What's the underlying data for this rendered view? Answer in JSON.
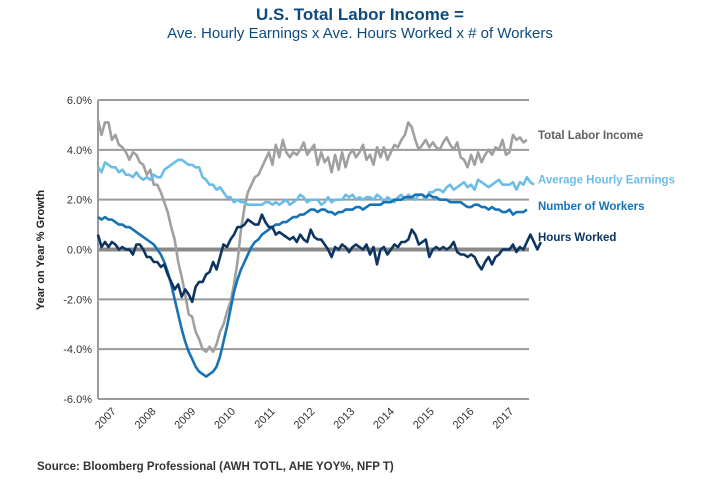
{
  "title": "U.S. Total Labor Income =",
  "subtitle": "Ave. Hourly Earnings x Ave. Hours Worked x # of Workers",
  "source": "Source: Bloomberg Professional (AWH TOTL, AHE YOY%, NFP T)",
  "chart_data": {
    "type": "line",
    "title": "U.S. Total Labor Income = Ave. Hourly Earnings x Ave. Hours Worked x # of Workers",
    "xlabel": "",
    "ylabel": "Year on Year % Growth",
    "ylim": [
      -6.0,
      6.0
    ],
    "yticks": [
      "6.0%",
      "4.0%",
      "2.0%",
      "0.0%",
      "-2.0%",
      "-4.0%",
      "-6.0%"
    ],
    "ytick_values": [
      6,
      4,
      2,
      0,
      -2,
      -4,
      -6
    ],
    "xlim": [
      2007.0,
      2017.3
    ],
    "xticks": [
      "2007",
      "2008",
      "2009",
      "2010",
      "2011",
      "2012",
      "2013",
      "2014",
      "2015",
      "2016",
      "2017"
    ],
    "xtick_values": [
      2007.35,
      2008.3,
      2009.25,
      2010.2,
      2011.15,
      2012.1,
      2013.05,
      2014.0,
      2014.95,
      2015.9,
      2016.85
    ],
    "grid": "horizontal",
    "legend": "right (inline labels)",
    "x_start": 2007.0,
    "x_step_months": 1,
    "series": [
      {
        "name": "Total Labor Income",
        "color": "#a0a0a0",
        "values": [
          5.2,
          4.6,
          5.1,
          5.1,
          4.4,
          4.6,
          4.2,
          4.1,
          3.9,
          3.6,
          3.9,
          3.8,
          3.5,
          3.4,
          3.0,
          3.2,
          2.6,
          2.6,
          2.3,
          1.9,
          1.5,
          0.9,
          0.4,
          -0.5,
          -1.1,
          -1.8,
          -2.6,
          -2.7,
          -3.3,
          -3.6,
          -4.0,
          -4.1,
          -3.9,
          -4.1,
          -3.8,
          -3.3,
          -3.0,
          -2.5,
          -2.1,
          -1.4,
          -0.5,
          0.8,
          1.7,
          2.3,
          2.6,
          2.9,
          3.0,
          3.3,
          3.6,
          3.9,
          3.4,
          4.2,
          3.7,
          4.4,
          3.9,
          3.7,
          3.9,
          3.8,
          4.0,
          4.3,
          3.8,
          4.0,
          4.2,
          3.4,
          3.9,
          3.5,
          3.7,
          3.1,
          3.8,
          3.2,
          3.9,
          3.3,
          3.8,
          4.0,
          3.7,
          3.9,
          4.2,
          3.6,
          3.8,
          3.4,
          4.1,
          3.7,
          4.1,
          3.6,
          3.9,
          4.2,
          4.1,
          4.4,
          4.6,
          5.1,
          4.9,
          4.4,
          4.0,
          4.2,
          4.4,
          4.1,
          4.3,
          4.1,
          4.0,
          4.3,
          4.5,
          4.2,
          4.0,
          4.3,
          3.7,
          3.6,
          3.3,
          3.8,
          3.4,
          3.9,
          3.5,
          3.8,
          4.0,
          3.8,
          4.1,
          4.0,
          4.4,
          3.8,
          3.9,
          4.6,
          4.4,
          4.5,
          4.3,
          4.4
        ]
      },
      {
        "name": "Average Hourly Earnings",
        "color": "#6bbde8",
        "values": [
          3.3,
          3.1,
          3.5,
          3.4,
          3.3,
          3.3,
          3.1,
          3.2,
          3.0,
          3.0,
          2.9,
          3.1,
          2.9,
          2.8,
          2.9,
          2.8,
          3.0,
          2.9,
          2.9,
          3.2,
          3.3,
          3.4,
          3.5,
          3.6,
          3.6,
          3.5,
          3.4,
          3.4,
          3.3,
          3.3,
          2.9,
          2.8,
          2.6,
          2.6,
          2.4,
          2.5,
          2.3,
          2.1,
          2.1,
          1.9,
          2.0,
          1.9,
          1.9,
          1.8,
          1.8,
          1.8,
          1.8,
          1.8,
          1.9,
          1.9,
          1.8,
          1.9,
          1.8,
          1.9,
          2.0,
          1.8,
          1.9,
          2.0,
          2.2,
          2.1,
          1.9,
          2.0,
          2.0,
          2.0,
          1.8,
          1.9,
          2.1,
          1.9,
          2.0,
          2.0,
          2.0,
          2.2,
          2.1,
          2.2,
          2.0,
          2.1,
          2.0,
          2.1,
          2.1,
          2.0,
          2.2,
          2.1,
          1.9,
          2.1,
          2.0,
          1.9,
          2.1,
          2.2,
          2.0,
          2.2,
          2.1,
          2.0,
          2.2,
          2.2,
          2.0,
          2.3,
          2.3,
          2.4,
          2.4,
          2.3,
          2.5,
          2.6,
          2.4,
          2.5,
          2.6,
          2.7,
          2.5,
          2.6,
          2.4,
          2.8,
          2.7,
          2.6,
          2.5,
          2.6,
          2.7,
          2.8,
          2.6,
          2.6,
          2.6,
          2.7,
          2.4,
          2.7,
          2.6,
          2.9,
          2.7,
          2.6
        ]
      },
      {
        "name": "Number of Workers",
        "color": "#1673b6",
        "values": [
          1.3,
          1.2,
          1.3,
          1.2,
          1.2,
          1.1,
          1.0,
          1.0,
          0.9,
          0.9,
          0.8,
          0.7,
          0.6,
          0.5,
          0.4,
          0.3,
          0.2,
          0.0,
          -0.2,
          -0.5,
          -0.9,
          -1.4,
          -2.0,
          -2.6,
          -3.2,
          -3.7,
          -4.1,
          -4.4,
          -4.7,
          -4.9,
          -5.0,
          -5.1,
          -5.0,
          -4.9,
          -4.7,
          -4.3,
          -3.7,
          -3.1,
          -2.4,
          -1.7,
          -1.2,
          -0.8,
          -0.5,
          -0.2,
          0.1,
          0.3,
          0.4,
          0.6,
          0.7,
          0.8,
          0.9,
          1.0,
          1.0,
          1.1,
          1.1,
          1.2,
          1.3,
          1.3,
          1.4,
          1.4,
          1.5,
          1.6,
          1.6,
          1.5,
          1.6,
          1.6,
          1.5,
          1.5,
          1.4,
          1.5,
          1.5,
          1.6,
          1.6,
          1.6,
          1.7,
          1.7,
          1.6,
          1.7,
          1.8,
          1.8,
          1.8,
          1.8,
          1.9,
          1.9,
          1.9,
          2.0,
          2.0,
          2.0,
          2.1,
          2.1,
          2.1,
          2.2,
          2.2,
          2.2,
          2.1,
          2.2,
          2.1,
          2.1,
          2.0,
          2.0,
          2.0,
          1.9,
          1.9,
          1.9,
          1.9,
          1.8,
          1.7,
          1.7,
          1.8,
          1.8,
          1.7,
          1.7,
          1.6,
          1.7,
          1.6,
          1.6,
          1.5,
          1.5,
          1.6,
          1.4,
          1.5,
          1.5,
          1.5,
          1.6
        ]
      },
      {
        "name": "Hours Worked",
        "color": "#0d3560",
        "values": [
          0.6,
          0.1,
          0.3,
          0.1,
          0.3,
          0.2,
          0.0,
          0.1,
          0.0,
          0.0,
          -0.2,
          0.2,
          0.2,
          0.0,
          -0.3,
          -0.3,
          -0.5,
          -0.5,
          -0.7,
          -0.6,
          -1.0,
          -1.3,
          -1.6,
          -1.4,
          -1.9,
          -1.6,
          -1.8,
          -2.1,
          -1.5,
          -1.3,
          -1.3,
          -1.0,
          -0.9,
          -0.5,
          -0.8,
          -0.3,
          0.2,
          0.1,
          0.4,
          0.6,
          0.9,
          0.9,
          1.0,
          1.2,
          1.1,
          1.0,
          1.0,
          1.4,
          1.1,
          0.9,
          0.9,
          0.6,
          0.7,
          0.6,
          0.5,
          0.4,
          0.5,
          0.3,
          0.6,
          0.4,
          0.3,
          0.8,
          0.5,
          0.4,
          0.4,
          0.2,
          0.0,
          -0.3,
          0.1,
          0.0,
          0.2,
          0.1,
          -0.1,
          0.1,
          0.2,
          0.1,
          0.0,
          0.2,
          -0.2,
          0.1,
          -0.6,
          0.0,
          0.1,
          -0.2,
          0.0,
          0.2,
          0.1,
          0.3,
          0.3,
          0.4,
          0.8,
          0.6,
          0.2,
          0.3,
          0.4,
          -0.3,
          0.0,
          0.1,
          0.0,
          0.1,
          0.0,
          0.1,
          0.3,
          -0.1,
          -0.2,
          -0.2,
          -0.3,
          -0.2,
          -0.3,
          -0.6,
          -0.8,
          -0.5,
          -0.3,
          -0.6,
          -0.3,
          -0.2,
          0.0,
          0.0,
          0.0,
          0.2,
          -0.1,
          0.1,
          0.0,
          0.3,
          0.6,
          0.3,
          0.0,
          0.3
        ]
      }
    ],
    "legend_labels": [
      {
        "name": "Total Labor Income",
        "color": "#606060",
        "at_value": 4.6
      },
      {
        "name": "Average Hourly Earnings",
        "color": "#6bbde8",
        "at_value": 2.8
      },
      {
        "name": "Number of Workers",
        "color": "#1673b6",
        "at_value": 1.75
      },
      {
        "name": "Hours Worked",
        "color": "#0d3560",
        "at_value": 0.5
      }
    ]
  }
}
